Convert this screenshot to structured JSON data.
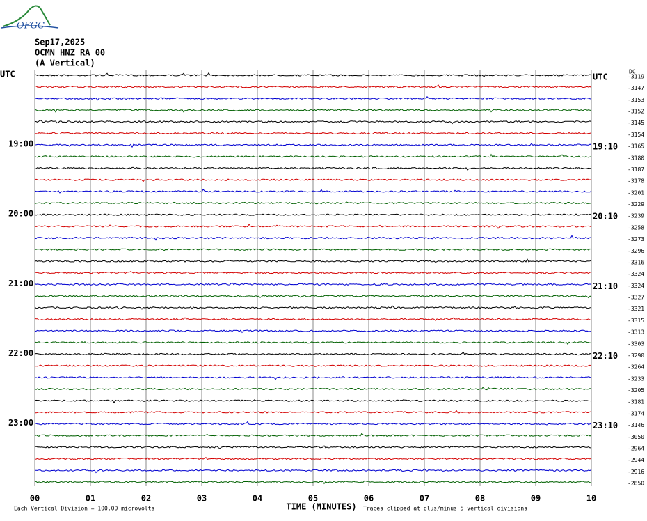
{
  "header": {
    "logo": "OFGC",
    "date": "Sep17,2025",
    "station": "OCMN HNZ RA 00",
    "component": "(A Vertical)"
  },
  "left_labels": [
    "UTC",
    "19:00",
    "20:00",
    "21:00",
    "22:00",
    "23:00"
  ],
  "right_labels": [
    "UTC",
    "19:10",
    "20:10",
    "21:10",
    "22:10",
    "23:10"
  ],
  "dc_label": "DC",
  "offsets": [
    "-3119",
    "-3147",
    "-3153",
    "-3152",
    "-3145",
    "-3154",
    "-3165",
    "-3180",
    "-3187",
    "-3178",
    "-3201",
    "-3229",
    "-3239",
    "-3258",
    "-3273",
    "-3296",
    "-3316",
    "-3324",
    "-3324",
    "-3327",
    "-3321",
    "-3315",
    "-3313",
    "-3303",
    "-3290",
    "-3264",
    "-3233",
    "-3205",
    "-3181",
    "-3174",
    "-3146",
    "-3050",
    "-2964",
    "-2944",
    "-2916",
    "-2850"
  ],
  "trace_colors": [
    "#000000",
    "#d40000",
    "#0000d0",
    "#006000"
  ],
  "x_ticks": [
    "00",
    "01",
    "02",
    "03",
    "04",
    "05",
    "06",
    "07",
    "08",
    "09",
    "10"
  ],
  "x_axis_title": "TIME (MINUTES)",
  "footer": {
    "scale": "Each Vertical Division =  100.00 microvolts",
    "clip": "Traces clipped at plus/minus 5 vertical divisions"
  }
}
